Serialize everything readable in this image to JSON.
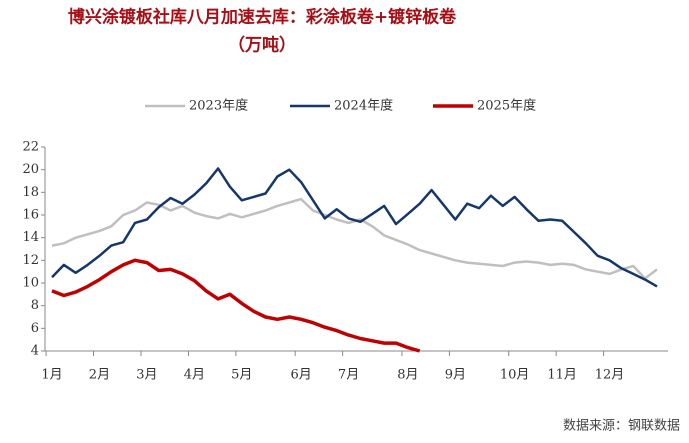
{
  "chart_data": {
    "type": "line",
    "title": "博兴涂镀板社库八月加速去库：彩涂板卷+镀锌板卷",
    "subtitle": "（万吨）",
    "source": "数据来源：钢联数据",
    "categories": [
      "1月",
      null,
      null,
      null,
      "2月",
      null,
      null,
      null,
      "3月",
      null,
      null,
      null,
      "4月",
      null,
      null,
      null,
      "5月",
      null,
      null,
      null,
      null,
      "6月",
      null,
      null,
      null,
      "7月",
      null,
      null,
      null,
      null,
      "8月",
      null,
      null,
      null,
      "9月",
      null,
      null,
      null,
      null,
      "10月",
      null,
      null,
      null,
      "11月",
      null,
      null,
      null,
      "12月",
      null,
      null,
      null,
      null
    ],
    "series": [
      {
        "name": "2023年度",
        "color": "#bfbfbf",
        "values": [
          13.3,
          13.5,
          14.0,
          14.3,
          14.6,
          15.0,
          16.0,
          16.4,
          17.1,
          16.9,
          16.4,
          16.8,
          16.2,
          15.9,
          15.7,
          16.1,
          15.8,
          16.1,
          16.4,
          16.8,
          17.1,
          17.4,
          16.4,
          16.0,
          15.6,
          15.3,
          15.6,
          15.0,
          14.2,
          13.8,
          13.4,
          12.9,
          12.6,
          12.3,
          12.0,
          11.8,
          11.7,
          11.6,
          11.5,
          11.8,
          11.9,
          11.8,
          11.6,
          11.7,
          11.6,
          11.2,
          11.0,
          10.8,
          11.2,
          11.5,
          10.4,
          11.2
        ]
      },
      {
        "name": "2024年度",
        "color": "#17376b",
        "values": [
          10.5,
          11.6,
          10.9,
          11.6,
          12.4,
          13.3,
          13.6,
          15.3,
          15.6,
          16.7,
          17.5,
          17.0,
          17.8,
          18.8,
          20.1,
          18.5,
          17.3,
          17.6,
          17.9,
          19.4,
          20.0,
          18.9,
          17.3,
          15.7,
          16.5,
          15.7,
          15.4,
          16.1,
          16.8,
          15.2,
          16.1,
          17.0,
          18.2,
          16.9,
          15.6,
          17.0,
          16.6,
          17.7,
          16.8,
          17.6,
          16.5,
          15.5,
          15.6,
          15.5,
          14.5,
          13.5,
          12.4,
          12.0,
          11.3,
          10.8,
          10.3,
          9.7
        ]
      },
      {
        "name": "2025年度",
        "color": "#c00000",
        "values": [
          9.3,
          8.9,
          9.2,
          9.7,
          10.3,
          11.0,
          11.6,
          12.0,
          11.8,
          11.1,
          11.2,
          10.8,
          10.2,
          9.3,
          8.6,
          9.0,
          8.2,
          7.5,
          7.0,
          6.8,
          7.0,
          6.8,
          6.5,
          6.1,
          5.8,
          5.4,
          5.1,
          4.9,
          4.7,
          4.7,
          4.3,
          4.0,
          null,
          null,
          null,
          null,
          null,
          null,
          null,
          null,
          null,
          null,
          null,
          null,
          null,
          null,
          null,
          null,
          null,
          null,
          null,
          null
        ]
      }
    ],
    "ylim": [
      4,
      22
    ],
    "yticks": [
      4,
      6,
      8,
      10,
      12,
      14,
      16,
      18,
      20,
      22
    ],
    "grid": false,
    "legend": "top"
  }
}
